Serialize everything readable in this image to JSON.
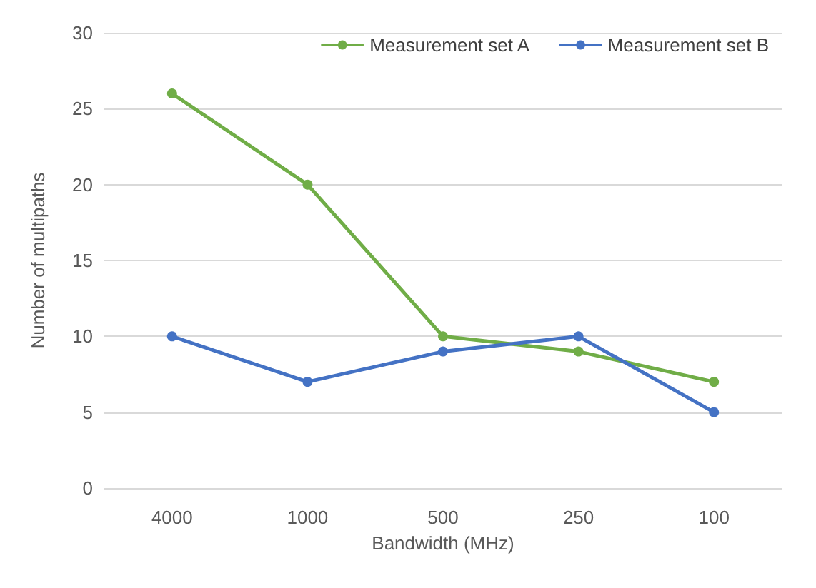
{
  "chart_data": {
    "type": "line",
    "xlabel": "Bandwidth (MHz)",
    "ylabel": "Number of multipaths",
    "categories": [
      "4000",
      "1000",
      "500",
      "250",
      "100"
    ],
    "series": [
      {
        "name": "Measurement set A",
        "color": "#70ad47",
        "values": [
          26,
          20,
          10,
          9,
          7
        ]
      },
      {
        "name": "Measurement set B",
        "color": "#4472c4",
        "values": [
          10,
          7,
          9,
          10,
          5
        ]
      }
    ],
    "ylim": [
      0,
      30
    ],
    "yticks": [
      0,
      5,
      10,
      15,
      20,
      25,
      30
    ],
    "grid": "y",
    "legend": "top right",
    "marker": "circle",
    "line_style": "solid"
  }
}
